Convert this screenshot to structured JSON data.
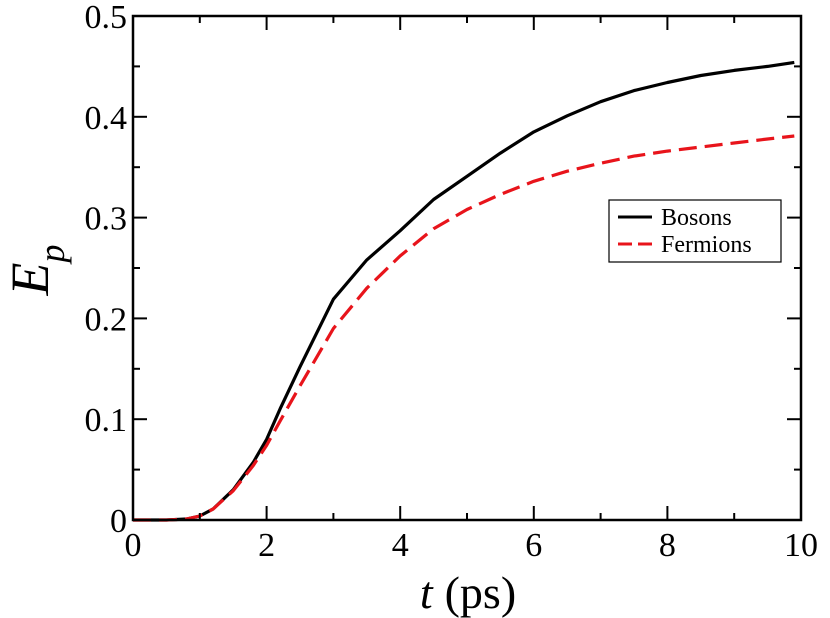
{
  "chart_data": {
    "type": "line",
    "xlabel_var": "t",
    "xlabel_unit": "(ps)",
    "ylabel_main": "E",
    "ylabel_sub": "p",
    "xlim": [
      0,
      10
    ],
    "ylim": [
      0,
      0.5
    ],
    "xticks": [
      "0",
      "2",
      "4",
      "6",
      "8",
      "10"
    ],
    "yticks": [
      "0",
      "0.1",
      "0.2",
      "0.3",
      "0.4",
      "0.5"
    ],
    "grid": false,
    "legend_position": "right",
    "series": [
      {
        "name": "Bosons",
        "color": "#000000",
        "dash": "solid",
        "x": [
          0.0,
          0.5,
          0.8,
          1.0,
          1.2,
          1.5,
          1.8,
          2.0,
          2.2,
          2.5,
          3.0,
          3.5,
          4.0,
          4.5,
          5.0,
          5.5,
          6.0,
          6.5,
          7.0,
          7.5,
          8.0,
          8.5,
          9.0,
          9.5,
          9.9
        ],
        "y": [
          0.0,
          0.0,
          0.001,
          0.004,
          0.011,
          0.03,
          0.057,
          0.08,
          0.11,
          0.152,
          0.219,
          0.258,
          0.287,
          0.318,
          0.341,
          0.364,
          0.385,
          0.401,
          0.415,
          0.426,
          0.434,
          0.441,
          0.446,
          0.45,
          0.454
        ]
      },
      {
        "name": "Fermions",
        "color": "#e8141b",
        "dash": "dashed",
        "x": [
          0.0,
          0.5,
          0.8,
          1.0,
          1.2,
          1.5,
          1.8,
          2.0,
          2.2,
          2.5,
          3.0,
          3.5,
          4.0,
          4.5,
          5.0,
          5.5,
          6.0,
          6.5,
          7.0,
          7.5,
          8.0,
          8.5,
          9.0,
          9.5,
          9.9
        ],
        "y": [
          0.0,
          0.0,
          0.001,
          0.004,
          0.011,
          0.029,
          0.054,
          0.074,
          0.098,
          0.133,
          0.19,
          0.23,
          0.262,
          0.289,
          0.308,
          0.323,
          0.336,
          0.346,
          0.354,
          0.361,
          0.366,
          0.37,
          0.374,
          0.378,
          0.381
        ]
      }
    ]
  }
}
